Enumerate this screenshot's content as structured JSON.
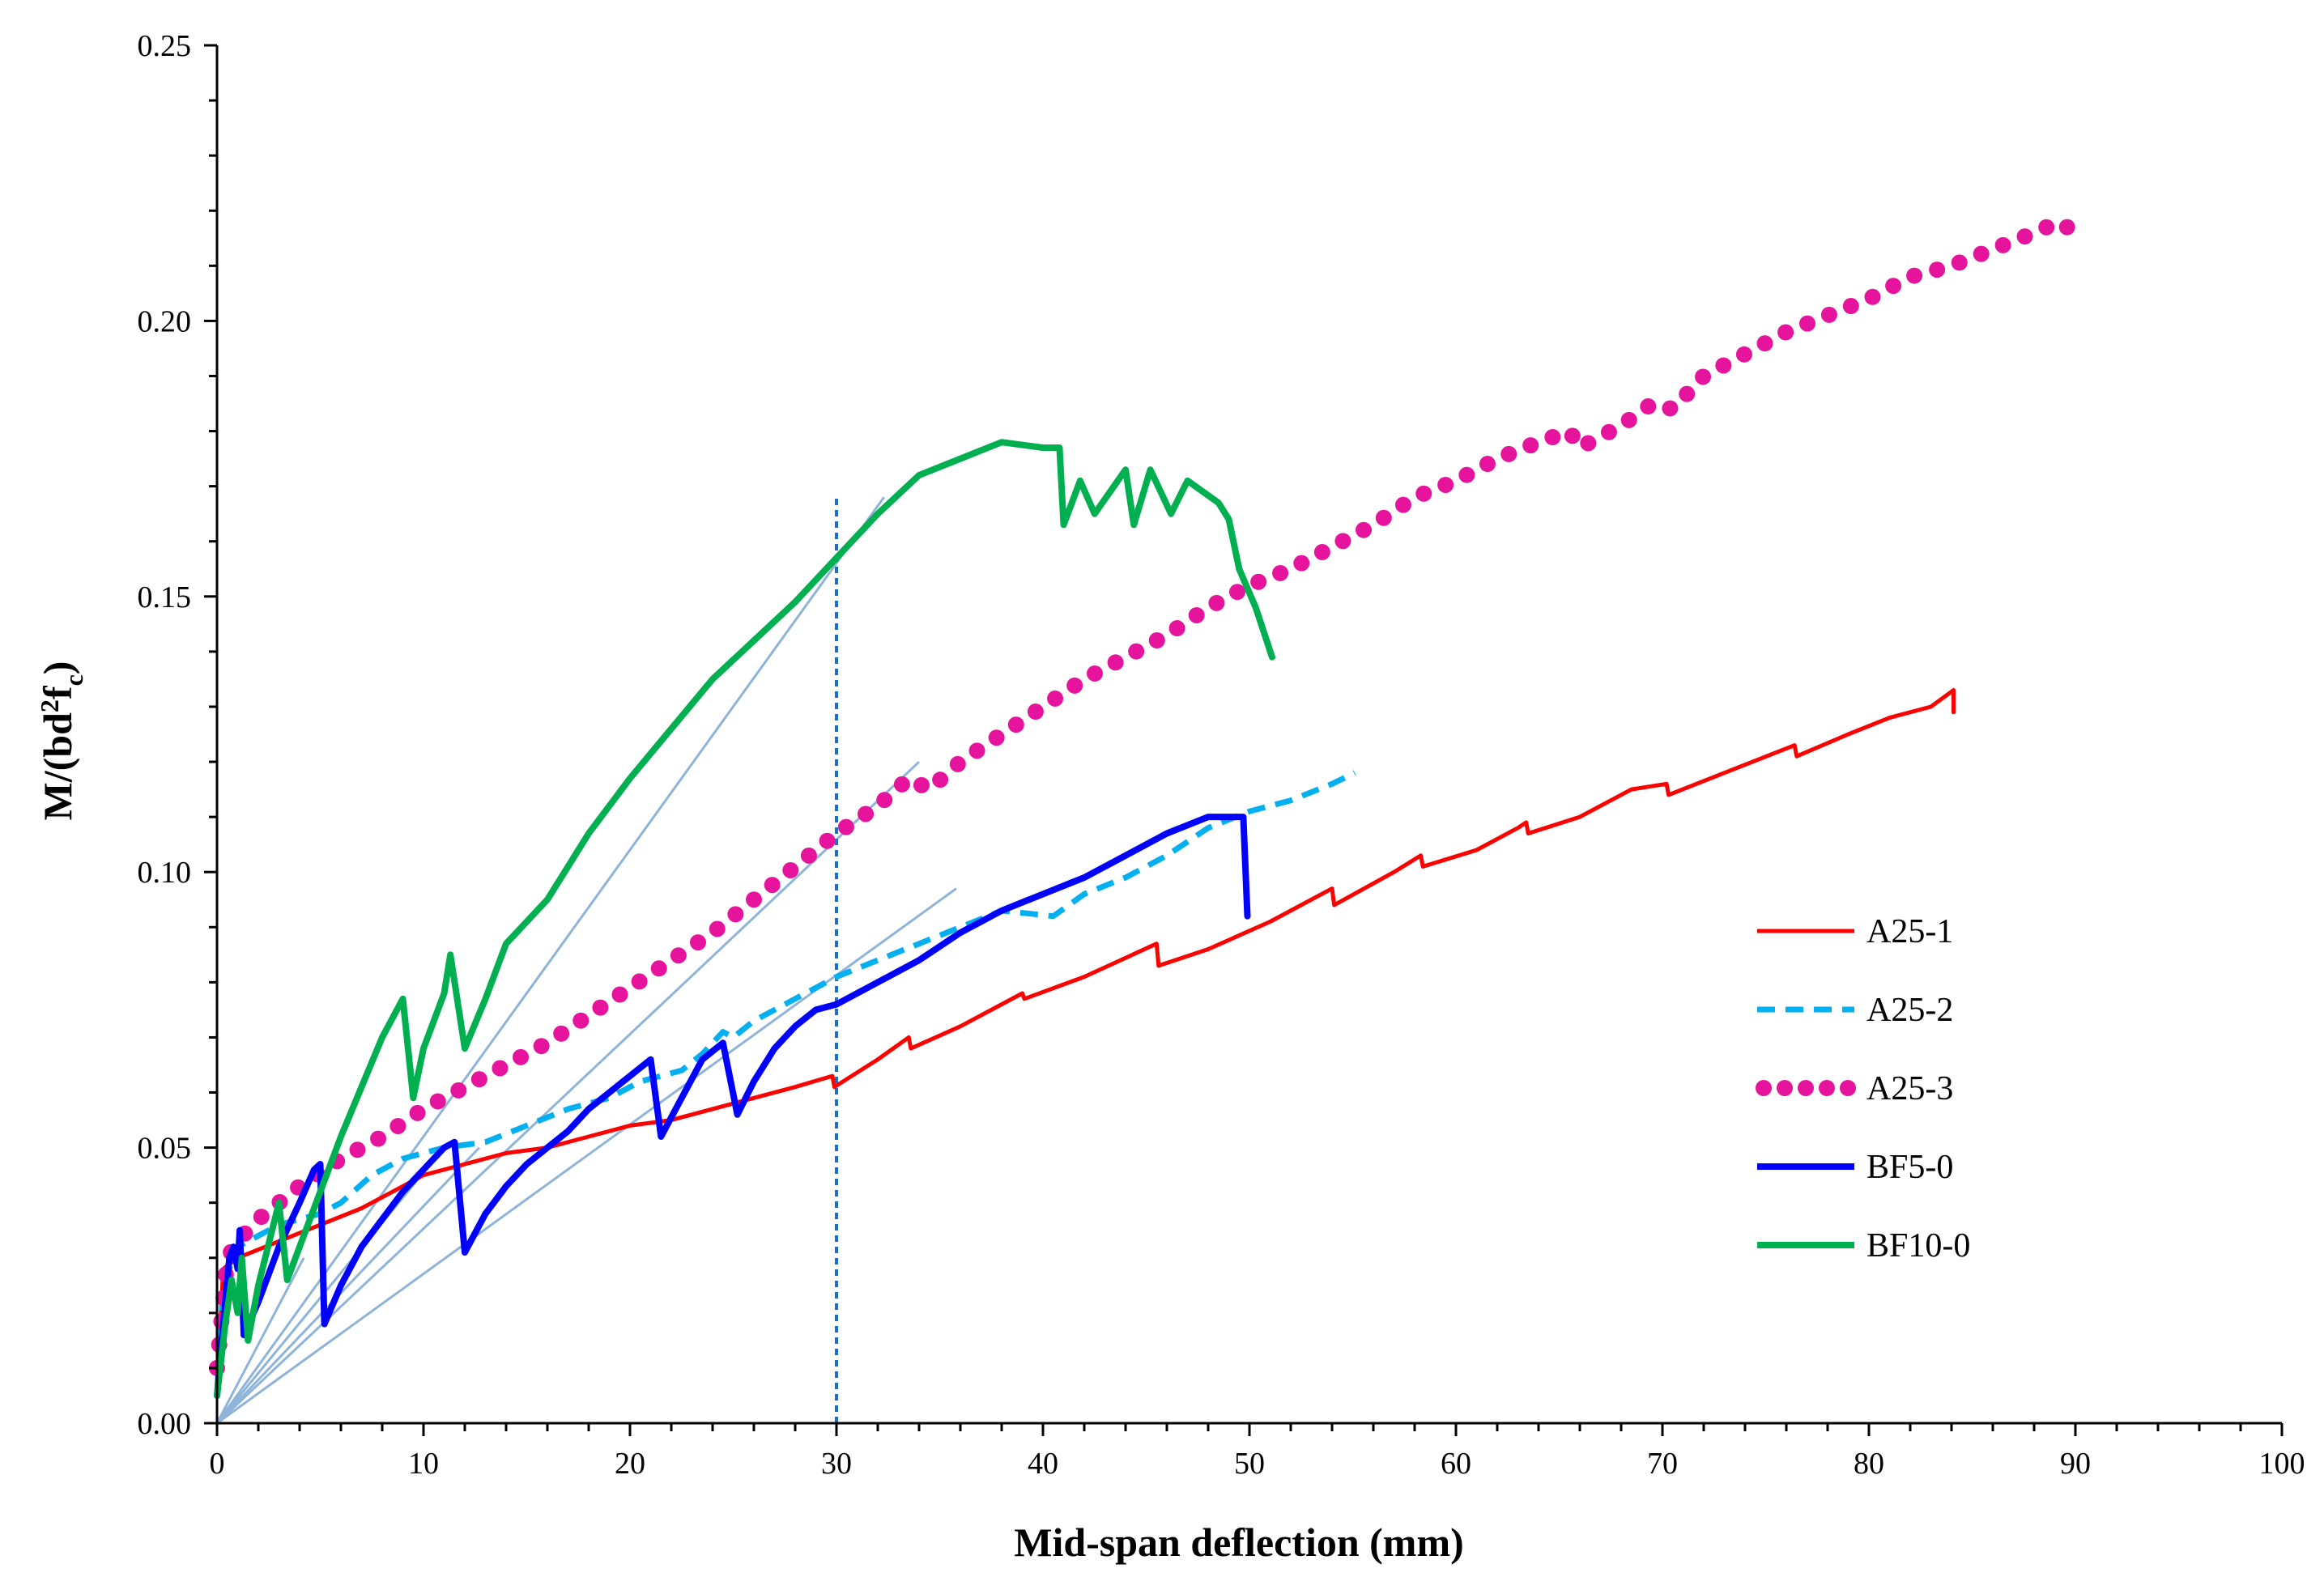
{
  "chart_data": {
    "type": "line",
    "title": "",
    "xlabel": "Mid-span deflection (mm)",
    "ylabel_main": "M/(bd",
    "ylabel_sup": "2",
    "ylabel_mid": "f",
    "ylabel_sub": "c",
    "ylabel_end": ")",
    "xlim": [
      0,
      100
    ],
    "ylim": [
      0,
      0.25
    ],
    "x_ticks": [
      0,
      10,
      20,
      30,
      40,
      50,
      60,
      70,
      80,
      90,
      100
    ],
    "x_tick_labels": [
      "0",
      "10",
      "20",
      "30",
      "40",
      "50",
      "60",
      "70",
      "80",
      "90",
      "100"
    ],
    "y_ticks": [
      0,
      0.05,
      0.1,
      0.15,
      0.2,
      0.25
    ],
    "y_tick_labels": [
      "0.00",
      "0.05",
      "0.10",
      "0.15",
      "0.20",
      "0.25"
    ],
    "legend_position": "right-middle",
    "vertical_reference_x": 30,
    "vertical_reference_ymax": 0.168,
    "guide_lines": [
      {
        "x_end": 32.3,
        "y_end": 0.168
      },
      {
        "x_end": 34.0,
        "y_end": 0.12
      },
      {
        "x_end": 35.8,
        "y_end": 0.097
      },
      {
        "x_end": 12.7,
        "y_end": 0.05
      },
      {
        "x_end": 11.0,
        "y_end": 0.05
      },
      {
        "x_end": 4.2,
        "y_end": 0.03
      }
    ],
    "series": [
      {
        "name": "A25-1",
        "color": "#ff0000",
        "style": "solid",
        "points": [
          [
            0,
            0.005
          ],
          [
            0.3,
            0.028
          ],
          [
            1,
            0.03
          ],
          [
            3,
            0.033
          ],
          [
            5,
            0.036
          ],
          [
            7,
            0.039
          ],
          [
            9,
            0.043
          ],
          [
            10,
            0.045
          ],
          [
            12,
            0.047
          ],
          [
            14,
            0.049
          ],
          [
            16,
            0.05
          ],
          [
            18,
            0.052
          ],
          [
            20,
            0.054
          ],
          [
            22,
            0.055
          ],
          [
            24,
            0.057
          ],
          [
            26,
            0.059
          ],
          [
            28,
            0.061
          ],
          [
            29.8,
            0.063
          ],
          [
            29.9,
            0.061
          ],
          [
            32,
            0.066
          ],
          [
            33.5,
            0.07
          ],
          [
            33.6,
            0.068
          ],
          [
            36,
            0.072
          ],
          [
            39,
            0.078
          ],
          [
            39.1,
            0.077
          ],
          [
            42,
            0.081
          ],
          [
            45.5,
            0.087
          ],
          [
            45.6,
            0.083
          ],
          [
            48,
            0.086
          ],
          [
            51,
            0.091
          ],
          [
            54,
            0.097
          ],
          [
            54.1,
            0.094
          ],
          [
            57,
            0.1
          ],
          [
            58.3,
            0.103
          ],
          [
            58.4,
            0.101
          ],
          [
            61,
            0.104
          ],
          [
            63,
            0.108
          ],
          [
            63.4,
            0.109
          ],
          [
            63.5,
            0.107
          ],
          [
            66,
            0.11
          ],
          [
            68.5,
            0.115
          ],
          [
            70.2,
            0.116
          ],
          [
            70.3,
            0.114
          ],
          [
            73,
            0.118
          ],
          [
            76.4,
            0.123
          ],
          [
            76.5,
            0.121
          ],
          [
            79,
            0.125
          ],
          [
            81,
            0.128
          ],
          [
            83,
            0.13
          ],
          [
            84.1,
            0.133
          ],
          [
            84.1,
            0.129
          ]
        ]
      },
      {
        "name": "A25-2",
        "color": "#00b0f0",
        "style": "dashed",
        "points": [
          [
            0,
            0.005
          ],
          [
            0.3,
            0.025
          ],
          [
            1,
            0.032
          ],
          [
            2,
            0.034
          ],
          [
            3,
            0.036
          ],
          [
            5,
            0.038
          ],
          [
            6,
            0.04
          ],
          [
            7.5,
            0.045
          ],
          [
            9,
            0.048
          ],
          [
            11,
            0.05
          ],
          [
            13,
            0.051
          ],
          [
            15,
            0.054
          ],
          [
            17,
            0.057
          ],
          [
            19,
            0.059
          ],
          [
            20.5,
            0.062
          ],
          [
            21.5,
            0.063
          ],
          [
            22.5,
            0.064
          ],
          [
            23.5,
            0.067
          ],
          [
            24.5,
            0.071
          ],
          [
            25,
            0.07
          ],
          [
            26,
            0.073
          ],
          [
            28,
            0.077
          ],
          [
            30,
            0.081
          ],
          [
            32,
            0.084
          ],
          [
            34,
            0.087
          ],
          [
            36,
            0.09
          ],
          [
            38,
            0.093
          ],
          [
            40.5,
            0.092
          ],
          [
            42,
            0.096
          ],
          [
            44,
            0.099
          ],
          [
            46,
            0.103
          ],
          [
            48,
            0.108
          ],
          [
            50,
            0.111
          ],
          [
            52,
            0.113
          ],
          [
            54,
            0.116
          ],
          [
            55.1,
            0.118
          ]
        ]
      },
      {
        "name": "A25-3",
        "color": "#e6149c",
        "style": "dotted",
        "points": [
          [
            0,
            0.01
          ],
          [
            0.5,
            0.03
          ],
          [
            1,
            0.033
          ],
          [
            2,
            0.037
          ],
          [
            4,
            0.043
          ],
          [
            6,
            0.048
          ],
          [
            8,
            0.052
          ],
          [
            10,
            0.057
          ],
          [
            12,
            0.061
          ],
          [
            14,
            0.065
          ],
          [
            16,
            0.069
          ],
          [
            18,
            0.074
          ],
          [
            20,
            0.079
          ],
          [
            22,
            0.084
          ],
          [
            24,
            0.089
          ],
          [
            26,
            0.095
          ],
          [
            28,
            0.101
          ],
          [
            30,
            0.107
          ],
          [
            32,
            0.112
          ],
          [
            33.5,
            0.117
          ],
          [
            34.5,
            0.115
          ],
          [
            36,
            0.12
          ],
          [
            38,
            0.125
          ],
          [
            40,
            0.13
          ],
          [
            42,
            0.135
          ],
          [
            44,
            0.139
          ],
          [
            46,
            0.143
          ],
          [
            48,
            0.148
          ],
          [
            50,
            0.152
          ],
          [
            52,
            0.155
          ],
          [
            54,
            0.159
          ],
          [
            56,
            0.163
          ],
          [
            58,
            0.168
          ],
          [
            60,
            0.171
          ],
          [
            62,
            0.175
          ],
          [
            64,
            0.178
          ],
          [
            65.5,
            0.18
          ],
          [
            66,
            0.177
          ],
          [
            68,
            0.181
          ],
          [
            69.5,
            0.185
          ],
          [
            70.5,
            0.184
          ],
          [
            72,
            0.19
          ],
          [
            74,
            0.194
          ],
          [
            76,
            0.198
          ],
          [
            78,
            0.201
          ],
          [
            80,
            0.204
          ],
          [
            82,
            0.208
          ],
          [
            84,
            0.21
          ],
          [
            86,
            0.213
          ],
          [
            88,
            0.216
          ],
          [
            89.2,
            0.218
          ],
          [
            90,
            0.216
          ]
        ]
      },
      {
        "name": "BF5-0",
        "color": "#0000ff",
        "style": "solid",
        "points": [
          [
            0,
            0.005
          ],
          [
            0.4,
            0.022
          ],
          [
            0.6,
            0.03
          ],
          [
            0.8,
            0.032
          ],
          [
            1,
            0.028
          ],
          [
            1.1,
            0.035
          ],
          [
            1.3,
            0.016
          ],
          [
            2,
            0.022
          ],
          [
            3,
            0.032
          ],
          [
            4,
            0.04
          ],
          [
            4.7,
            0.046
          ],
          [
            5,
            0.047
          ],
          [
            5.2,
            0.018
          ],
          [
            6,
            0.025
          ],
          [
            7,
            0.032
          ],
          [
            8,
            0.037
          ],
          [
            9,
            0.042
          ],
          [
            10,
            0.046
          ],
          [
            11,
            0.05
          ],
          [
            11.5,
            0.051
          ],
          [
            12,
            0.031
          ],
          [
            13,
            0.038
          ],
          [
            14,
            0.043
          ],
          [
            15,
            0.047
          ],
          [
            16,
            0.05
          ],
          [
            17,
            0.053
          ],
          [
            18,
            0.057
          ],
          [
            19,
            0.06
          ],
          [
            20,
            0.063
          ],
          [
            21,
            0.066
          ],
          [
            21.5,
            0.052
          ],
          [
            22.5,
            0.059
          ],
          [
            23.5,
            0.066
          ],
          [
            24.5,
            0.069
          ],
          [
            25.2,
            0.056
          ],
          [
            26,
            0.062
          ],
          [
            27,
            0.068
          ],
          [
            28,
            0.072
          ],
          [
            29,
            0.075
          ],
          [
            30,
            0.076
          ],
          [
            31,
            0.078
          ],
          [
            32,
            0.08
          ],
          [
            34,
            0.084
          ],
          [
            36,
            0.089
          ],
          [
            38,
            0.093
          ],
          [
            40,
            0.096
          ],
          [
            42,
            0.099
          ],
          [
            44,
            0.103
          ],
          [
            46,
            0.107
          ],
          [
            48,
            0.11
          ],
          [
            49.7,
            0.11
          ],
          [
            49.9,
            0.092
          ]
        ]
      },
      {
        "name": "BF10-0",
        "color": "#00b050",
        "style": "solid",
        "points": [
          [
            0,
            0.005
          ],
          [
            0.4,
            0.018
          ],
          [
            0.7,
            0.026
          ],
          [
            1,
            0.02
          ],
          [
            1.2,
            0.03
          ],
          [
            1.5,
            0.015
          ],
          [
            2,
            0.025
          ],
          [
            3,
            0.04
          ],
          [
            3.4,
            0.026
          ],
          [
            4,
            0.032
          ],
          [
            5,
            0.042
          ],
          [
            6,
            0.052
          ],
          [
            7,
            0.061
          ],
          [
            8,
            0.07
          ],
          [
            9,
            0.077
          ],
          [
            9.5,
            0.059
          ],
          [
            10,
            0.068
          ],
          [
            11,
            0.078
          ],
          [
            11.3,
            0.085
          ],
          [
            12,
            0.068
          ],
          [
            13,
            0.077
          ],
          [
            14,
            0.087
          ],
          [
            16,
            0.095
          ],
          [
            18,
            0.107
          ],
          [
            20,
            0.117
          ],
          [
            22,
            0.126
          ],
          [
            24,
            0.135
          ],
          [
            26,
            0.142
          ],
          [
            28,
            0.149
          ],
          [
            30,
            0.157
          ],
          [
            32,
            0.165
          ],
          [
            34,
            0.172
          ],
          [
            36,
            0.175
          ],
          [
            38,
            0.178
          ],
          [
            40,
            0.177
          ],
          [
            40.8,
            0.177
          ],
          [
            41,
            0.163
          ],
          [
            41.8,
            0.171
          ],
          [
            42.5,
            0.165
          ],
          [
            44,
            0.173
          ],
          [
            44.4,
            0.163
          ],
          [
            45.2,
            0.173
          ],
          [
            46.2,
            0.165
          ],
          [
            47,
            0.171
          ],
          [
            48.5,
            0.167
          ],
          [
            49,
            0.164
          ],
          [
            49.5,
            0.155
          ],
          [
            50.3,
            0.148
          ],
          [
            51.1,
            0.139
          ]
        ]
      }
    ]
  }
}
